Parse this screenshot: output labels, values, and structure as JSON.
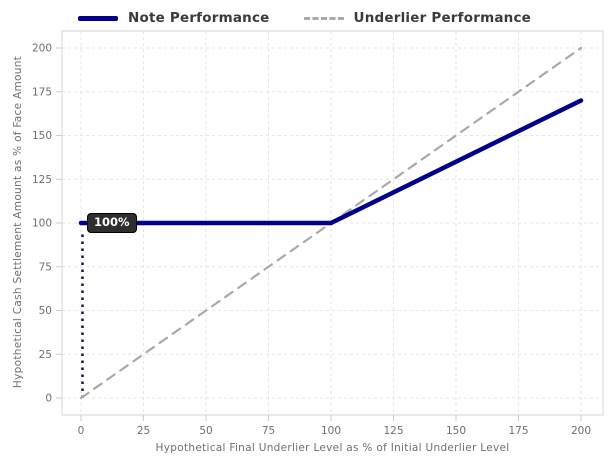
{
  "colors": {
    "note": "#00008b",
    "underlier": "#a9a9a9",
    "grid": "#e6e6e6",
    "plot_border": "#d5d5d5",
    "tick_mark": "#cccccc",
    "tick_text": "#6e6e6e",
    "legend_text": "#3a3a3a",
    "guide_dots": "#15153f",
    "tooltip_bg": "#2e2e2e",
    "tooltip_text": "#ffffff"
  },
  "chart_data": {
    "type": "line",
    "title": "",
    "xlabel": "Hypothetical Final Underlier Level as % of Initial Underlier Level",
    "ylabel": "Hypothetical Cash Settlement Amount as % of Face Amount",
    "xlim": [
      0,
      200
    ],
    "ylim": [
      0,
      200
    ],
    "x_ticks": [
      0,
      25,
      50,
      75,
      100,
      125,
      150,
      175,
      200
    ],
    "y_ticks": [
      0,
      25,
      50,
      75,
      100,
      125,
      150,
      175,
      200
    ],
    "grid": "dashed",
    "legend_position": "top-center",
    "series": [
      {
        "name": "Note Performance",
        "style": "solid",
        "color": "#00008b",
        "points": [
          [
            0,
            100
          ],
          [
            100,
            100
          ],
          [
            200,
            170
          ]
        ]
      },
      {
        "name": "Underlier Performance",
        "style": "dashed",
        "color": "#a9a9a9",
        "points": [
          [
            0,
            0
          ],
          [
            200,
            200
          ]
        ]
      }
    ],
    "guide_line": {
      "x": 0,
      "from_y": 0,
      "to_y": 95,
      "style": "dotted"
    },
    "annotations": [
      {
        "x": 0,
        "y": 100,
        "text": "100%"
      }
    ]
  }
}
